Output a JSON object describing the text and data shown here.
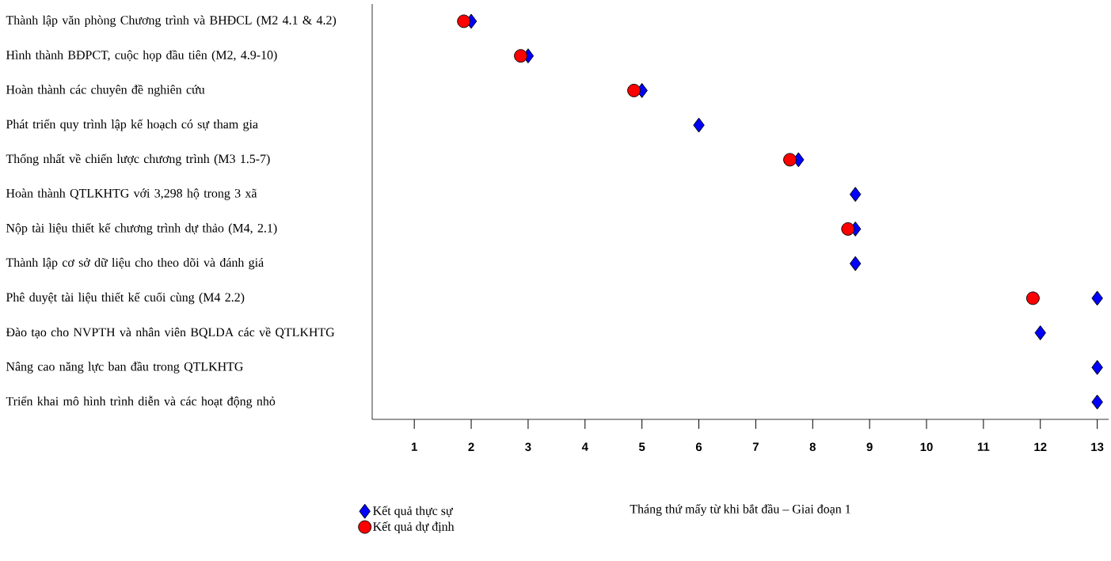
{
  "chart_data": {
    "type": "scatter",
    "orientation": "horizontal",
    "categories": [
      "Thành lập văn phòng Chương trình và BHĐCL (M2 4.1 & 4.2)",
      "Hình thành BĐPCT, cuộc họp đầu tiên (M2, 4.9-10)",
      "Hoàn thành các chuyên đề nghiên cứu",
      "Phát triển quy trình lập kế hoạch có sự tham gia",
      "Thống nhất về chiến lược chương trình (M3 1.5-7)",
      "Hoàn thành QTLKHTG với 3,298 hộ trong 3 xã",
      "Nộp tài liệu thiết kế chương trình dự thảo (M4, 2.1)",
      "Thành lập cơ sở dữ liệu cho theo dõi và đánh giá",
      "Phê duyệt tài liệu thiết kế cuối cùng (M4 2.2)",
      "Đào tạo cho NVPTH và nhân viên BQLDA các về QTLKHTG",
      "Nâng cao năng lực ban đầu trong QTLKHTG",
      "Triển khai mô hình trình diễn và các hoạt động nhỏ"
    ],
    "series": [
      {
        "name": "Kết quả dự định",
        "color": "#ff0000",
        "marker": "circle",
        "values": [
          1.87,
          2.87,
          4.86,
          null,
          7.6,
          null,
          8.62,
          null,
          11.87,
          null,
          null,
          null
        ]
      },
      {
        "name": "Kết quả thực sự",
        "color": "#0000ff",
        "marker": "diamond",
        "values": [
          2.0,
          3.0,
          5.0,
          6.0,
          7.75,
          8.75,
          8.75,
          8.75,
          13.0,
          12.0,
          13.0,
          13.0
        ]
      }
    ],
    "xlabel": "Tháng thứ mấy từ khi bắt đầu – Giai đoạn 1",
    "xlim": [
      0.26,
      13.2
    ],
    "xticks": [
      1,
      2,
      3,
      4,
      5,
      6,
      7,
      8,
      9,
      10,
      11,
      12,
      13
    ],
    "legend": "bottom left",
    "grid": false
  }
}
